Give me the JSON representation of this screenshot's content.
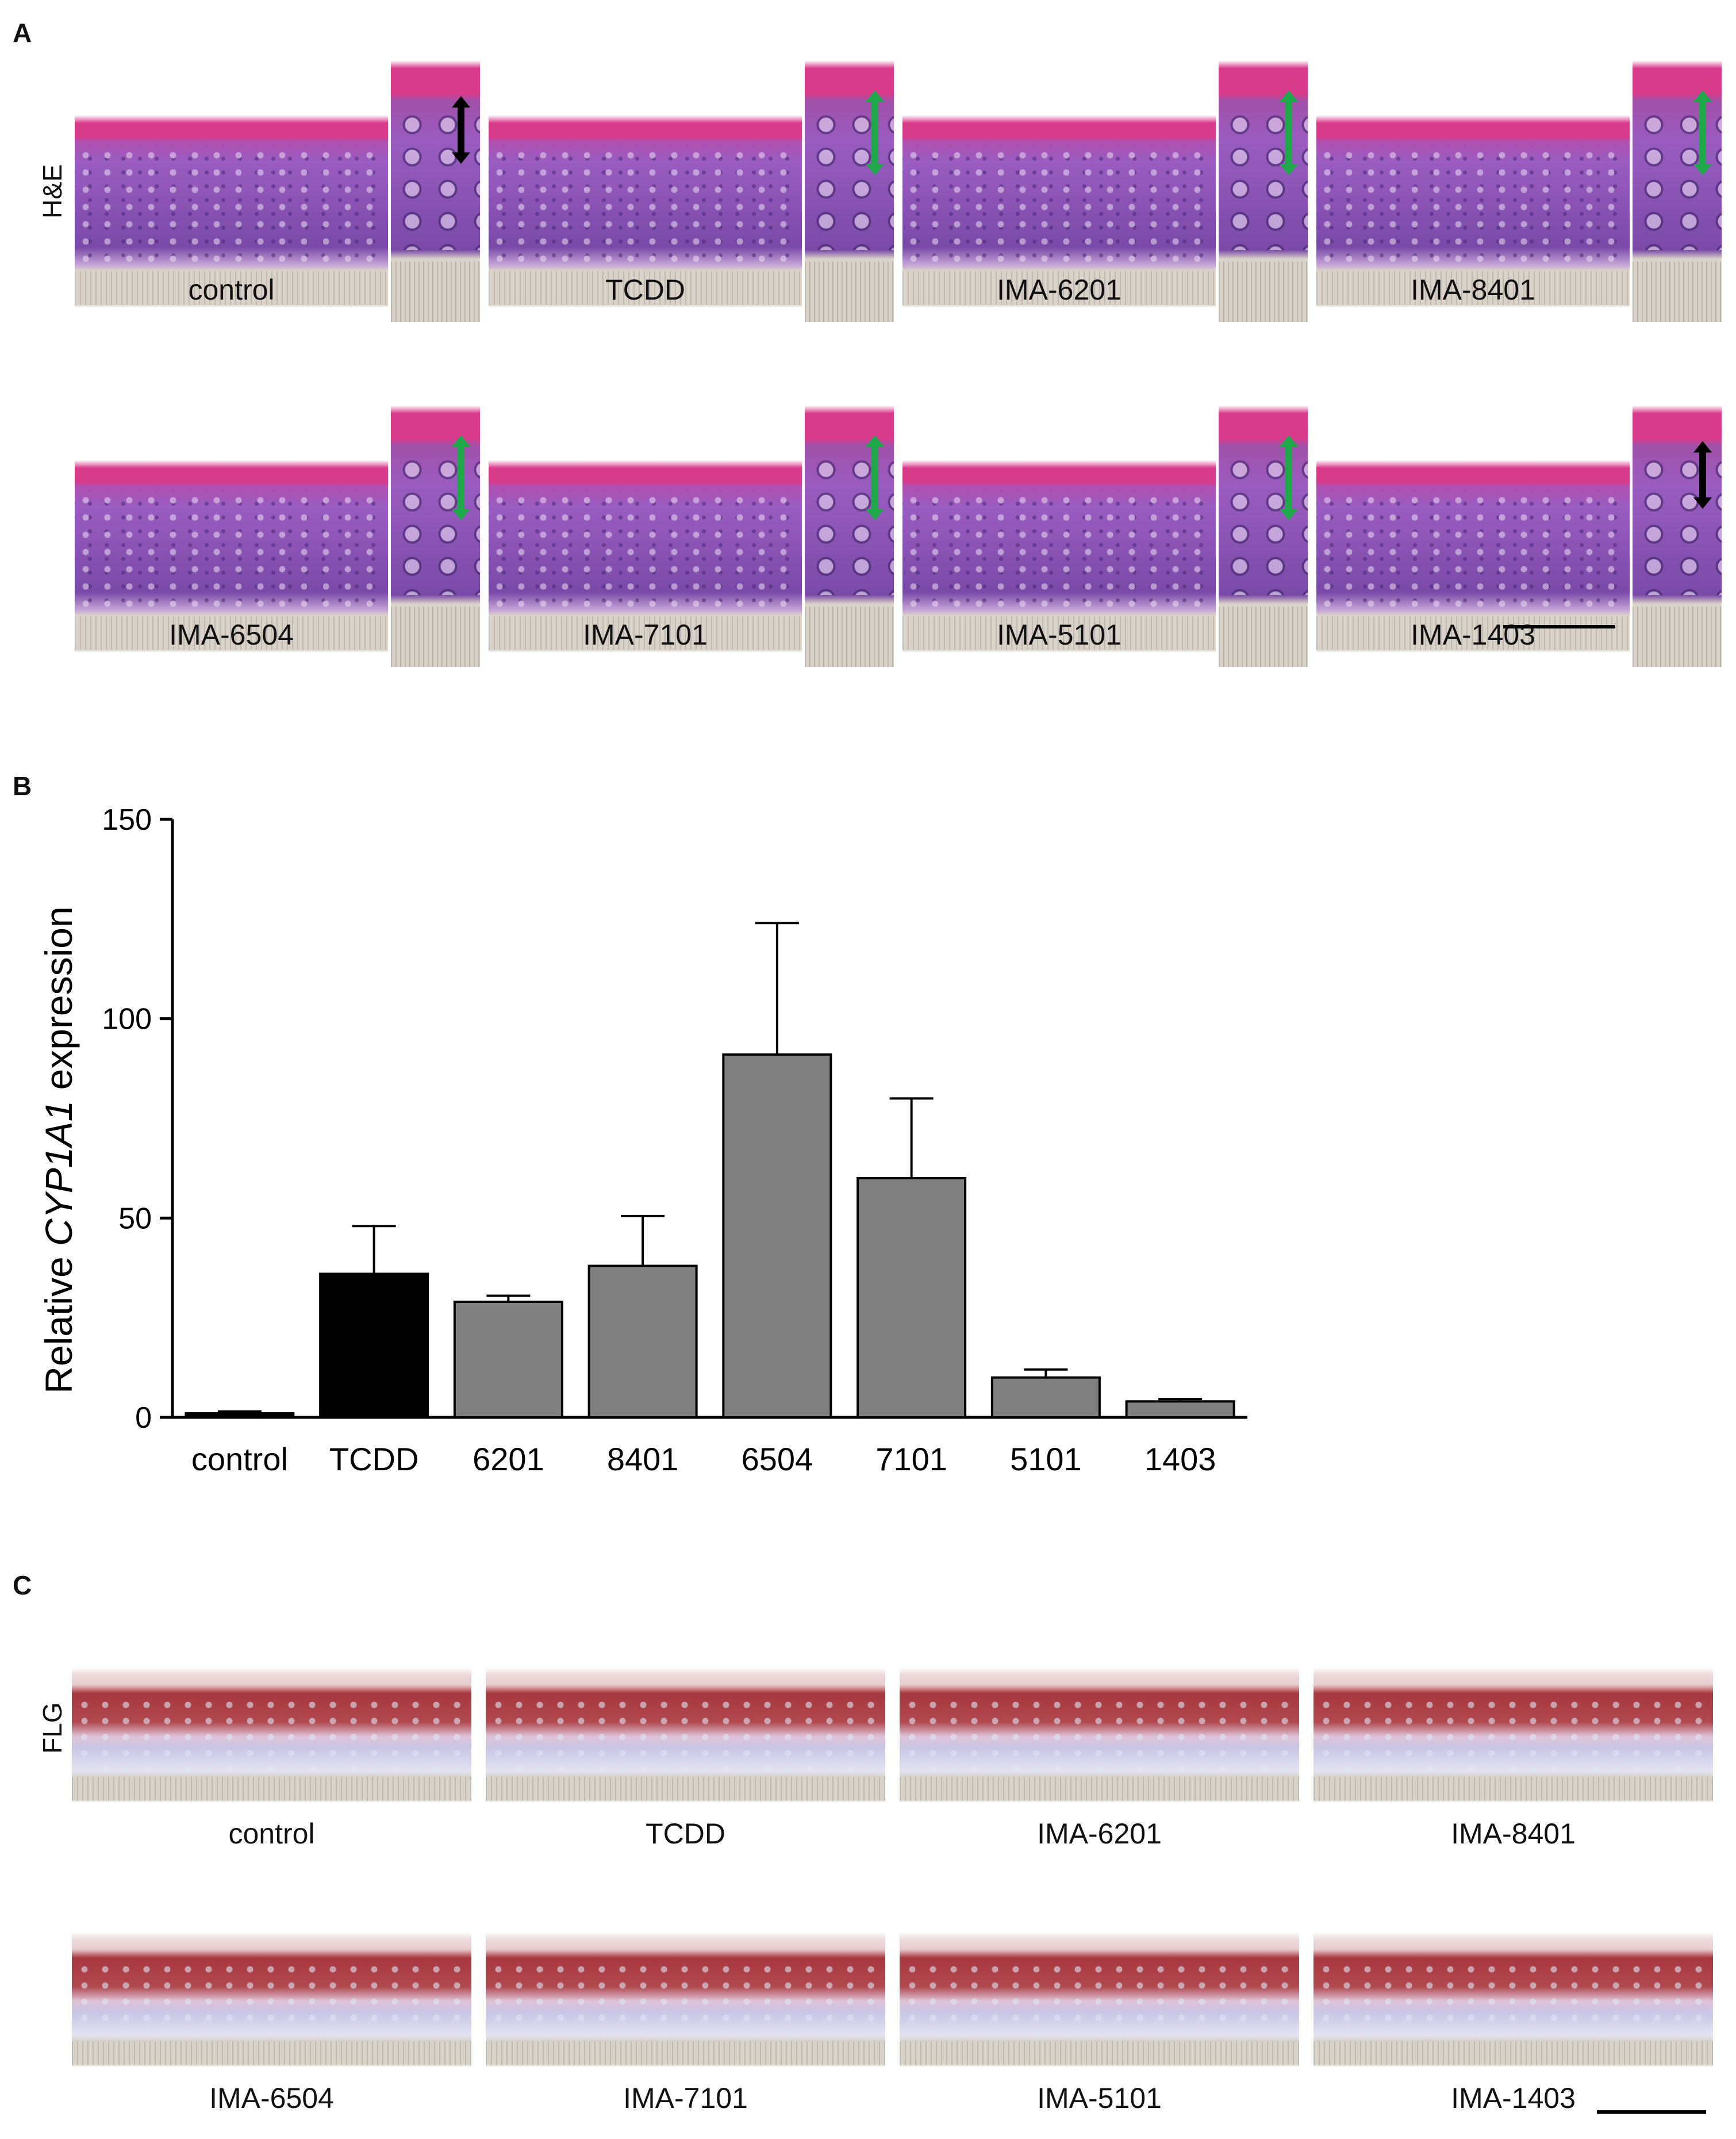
{
  "panels": {
    "a": {
      "letter": "A",
      "row_label": "H&E",
      "samples": [
        {
          "label": "control",
          "arrow": "black"
        },
        {
          "label": "TCDD",
          "arrow": "green"
        },
        {
          "label": "IMA-6201",
          "arrow": "green"
        },
        {
          "label": "IMA-8401",
          "arrow": "green"
        },
        {
          "label": "IMA-6504",
          "arrow": "green"
        },
        {
          "label": "IMA-7101",
          "arrow": "green"
        },
        {
          "label": "IMA-5101",
          "arrow": "green"
        },
        {
          "label": "IMA-1403",
          "arrow": "black"
        }
      ]
    },
    "b": {
      "letter": "B"
    },
    "c": {
      "letter": "C",
      "row_label": "FLG",
      "samples": [
        "control",
        "TCDD",
        "IMA-6201",
        "IMA-8401",
        "IMA-6504",
        "IMA-7101",
        "IMA-5101",
        "IMA-1403"
      ]
    }
  },
  "chart_data": {
    "type": "bar",
    "title": "",
    "xlabel": "",
    "ylabel_parts": [
      "Relative ",
      "CYP1A1",
      " expression"
    ],
    "categories": [
      "control",
      "TCDD",
      "6201",
      "8401",
      "6504",
      "7101",
      "5101",
      "1403"
    ],
    "values": [
      1,
      36,
      29,
      38,
      91,
      60,
      10,
      4
    ],
    "errors": [
      0.5,
      12,
      1.5,
      12.5,
      33,
      20,
      2,
      0.6
    ],
    "bar_colors": [
      "#000000",
      "#000000",
      "#808080",
      "#808080",
      "#808080",
      "#808080",
      "#808080",
      "#808080"
    ],
    "yticks": [
      0,
      50,
      100,
      150
    ],
    "ylim": [
      0,
      150
    ]
  },
  "colors": {
    "he_stratum": "#d83a8a",
    "he_epidermis": "#9a5cc0",
    "he_basal": "#7a4aa8",
    "membrane": "#d8d2c8",
    "flg_stain": "#a8373f",
    "flg_lower": "#c9c6e6",
    "arrow_green": "#1fa84a",
    "arrow_black": "#000000"
  }
}
